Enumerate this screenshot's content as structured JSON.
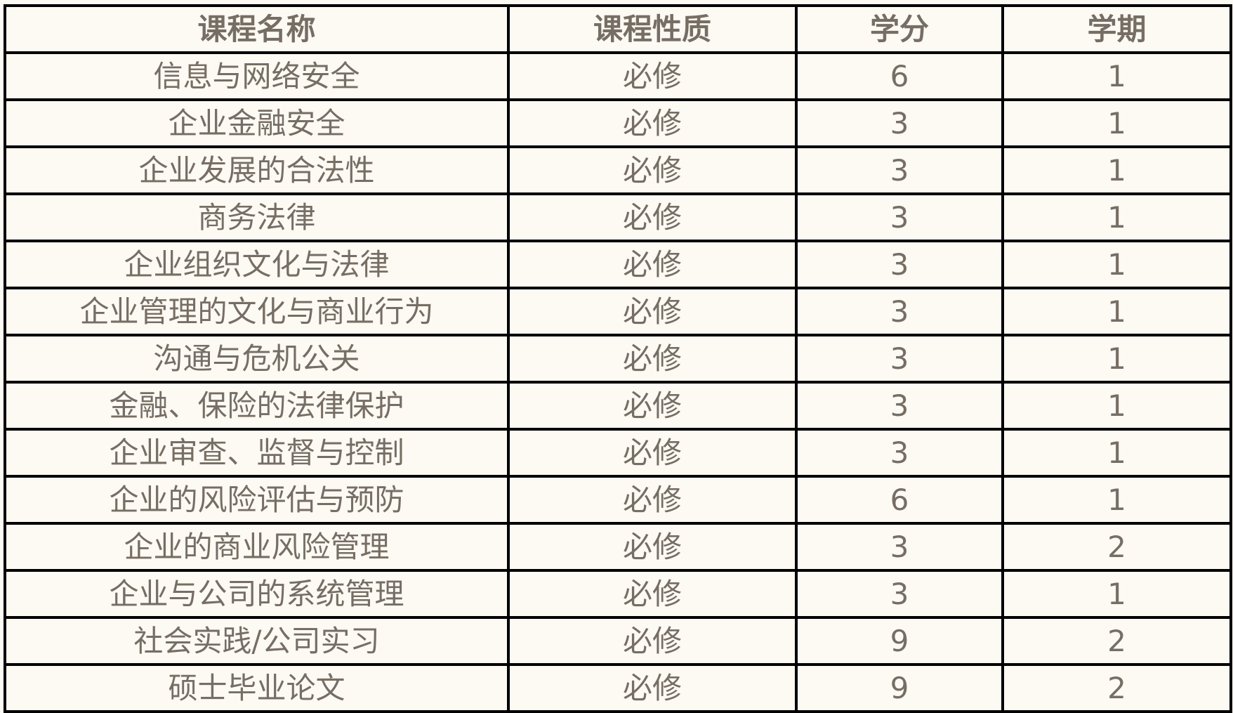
{
  "table": {
    "headers": [
      "课程名称",
      "课程性质",
      "学分",
      "学期"
    ],
    "rows": [
      [
        "信息与网络安全",
        "必修",
        "6",
        "1"
      ],
      [
        "企业金融安全",
        "必修",
        "3",
        "1"
      ],
      [
        "企业发展的合法性",
        "必修",
        "3",
        "1"
      ],
      [
        "商务法律",
        "必修",
        "3",
        "1"
      ],
      [
        "企业组织文化与法律",
        "必修",
        "3",
        "1"
      ],
      [
        "企业管理的文化与商业行为",
        "必修",
        "3",
        "1"
      ],
      [
        "沟通与危机公关",
        "必修",
        "3",
        "1"
      ],
      [
        "金融、保险的法律保护",
        "必修",
        "3",
        "1"
      ],
      [
        "企业审查、监督与控制",
        "必修",
        "3",
        "1"
      ],
      [
        "企业的风险评估与预防",
        "必修",
        "6",
        "1"
      ],
      [
        "企业的商业风险管理",
        "必修",
        "3",
        "2"
      ],
      [
        "企业与公司的系统管理",
        "必修",
        "3",
        "1"
      ],
      [
        "社会实践/公司实习",
        "必修",
        "9",
        "2"
      ],
      [
        "硕士毕业论文",
        "必修",
        "9",
        "2"
      ]
    ]
  },
  "colors": {
    "text": "#766e64",
    "background": "#fdf9f3",
    "border": "#000000"
  }
}
